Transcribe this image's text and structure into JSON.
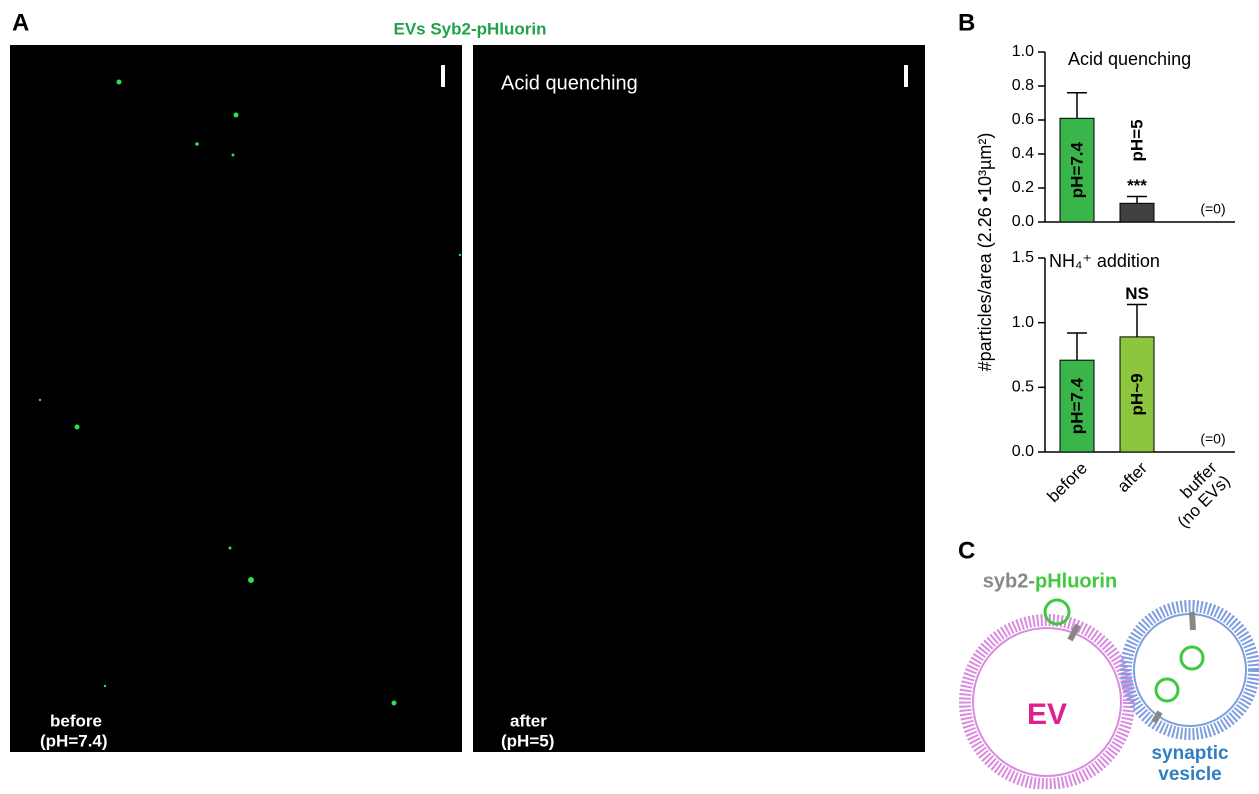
{
  "figure": {
    "panel_labels": [
      "A",
      "B",
      "C"
    ]
  },
  "panel_a": {
    "title": "EVs Syb2-pHluorin",
    "images": [
      {
        "caption": [
          "before",
          "(pH=7.4)"
        ]
      },
      {
        "annotation": "Acid quenching",
        "caption": [
          "after",
          "(pH=5)"
        ]
      }
    ]
  },
  "chart_data": [
    {
      "type": "bar",
      "title": "Acid quenching",
      "ylabel": "#particles/area (2.26 •10³µm²)",
      "categories": [
        null,
        null,
        null
      ],
      "values": [
        0.61,
        0.11,
        0
      ],
      "value_labels": [
        null,
        null,
        "(=0)"
      ],
      "errors": [
        0.15,
        0.04,
        null
      ],
      "bar_labels": [
        "pH=7.4",
        "pH=5",
        null
      ],
      "annotations": [
        null,
        "***",
        null
      ],
      "colors": [
        "#39b54a",
        "#404040",
        "#404040"
      ],
      "ylim": [
        0,
        1.0
      ],
      "yticks": [
        {
          "value": 0,
          "label": "0.0"
        },
        0.2,
        0.4,
        0.6,
        0.8,
        {
          "value": 1.0,
          "label": "1.0"
        }
      ]
    },
    {
      "type": "bar",
      "title": "NH₄⁺ addition",
      "categories": [
        "before",
        "after",
        "buffer\n(no EVs)"
      ],
      "values": [
        0.71,
        0.89,
        0
      ],
      "value_labels": [
        null,
        null,
        "(=0)"
      ],
      "errors": [
        0.21,
        0.25,
        null
      ],
      "bar_labels": [
        "pH=7.4",
        "pH~9",
        null
      ],
      "annotations": [
        null,
        "NS",
        null
      ],
      "colors": [
        "#39b54a",
        "#8cc63f",
        "#404040"
      ],
      "ylim": [
        0,
        1.5
      ],
      "yticks": [
        {
          "value": 0,
          "label": "0.0"
        },
        0.5,
        {
          "value": 1.0,
          "label": "1.0"
        },
        1.5
      ]
    }
  ],
  "panel_c": {
    "title_gray": "syb2-",
    "title_green": "pHluorin",
    "ev_label": "EV",
    "sv_label": [
      "synaptic",
      "vesicle"
    ]
  }
}
